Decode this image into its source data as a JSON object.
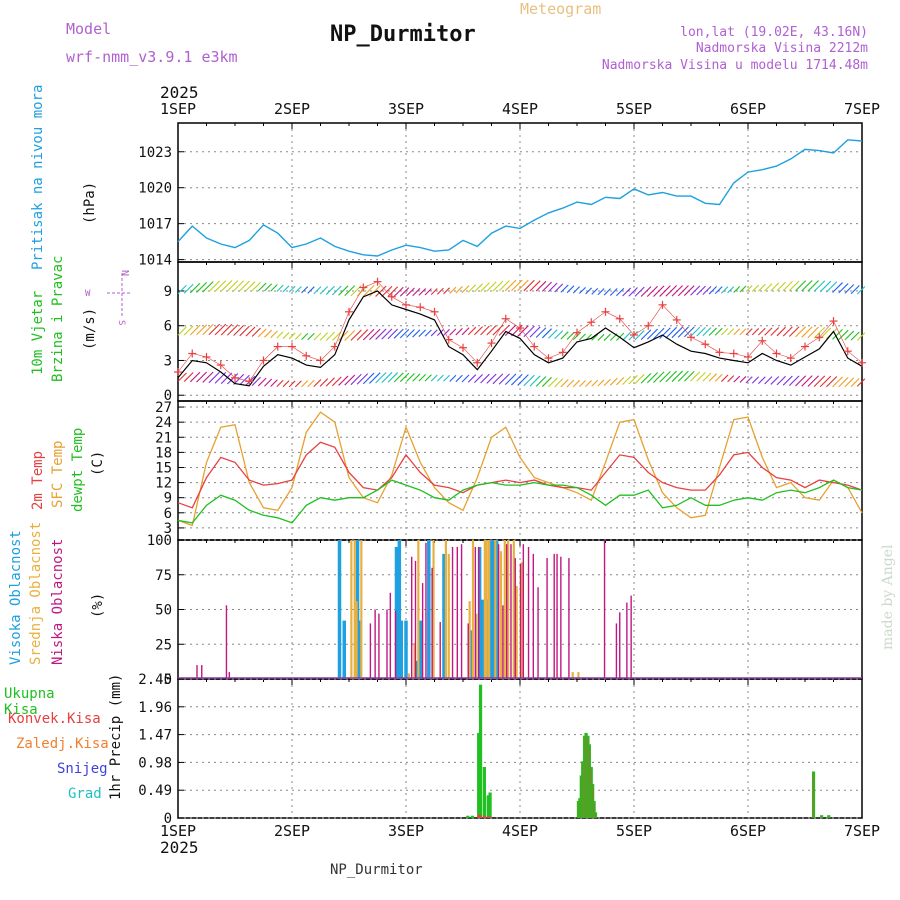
{
  "header": {
    "model_label": "Model",
    "model_value": "wrf-nmm_v3.9.1  e3km",
    "station": "NP_Durmitor",
    "product": "Meteogram",
    "lonlat": "lon,lat (19.02E, 43.16N)",
    "altitude": "Nadmorska Visina 2212m",
    "model_altitude": "Nadmorska Visina u modelu 1714.48m",
    "year": "2025",
    "footer_station": "NP_Durmitor",
    "watermark": "made by Angel"
  },
  "colors": {
    "pressure": "#1fa0e0",
    "temp2m": "#e84040",
    "sfc": "#e8a030",
    "dewpt": "#20c020",
    "high": "#1fa0e0",
    "mid": "#e8b040",
    "low": "#c01880",
    "total": "#20c020",
    "conv": "#e84040",
    "frozen": "#f08030",
    "snow": "#4040e0",
    "hail": "#20c0c0"
  },
  "chart_data": [
    {
      "id": "pressure",
      "type": "line",
      "ylabel": [
        "Pritisak na nivou mora",
        "(hPa)"
      ],
      "yticks": [
        1014,
        1017,
        1020,
        1023
      ],
      "ylim": [
        1013.8,
        1025.4
      ],
      "x_unit": "hours from 1SEP 00UTC",
      "x_ticks": [
        "1SEP",
        "2SEP",
        "3SEP",
        "4SEP",
        "5SEP",
        "6SEP",
        "7SEP"
      ],
      "x_range": [
        0,
        144
      ],
      "series": [
        {
          "name": "MSLP",
          "x": [
            0,
            3,
            6,
            9,
            12,
            15,
            18,
            21,
            24,
            27,
            30,
            33,
            36,
            39,
            42,
            45,
            48,
            51,
            54,
            57,
            60,
            63,
            66,
            69,
            72,
            75,
            78,
            81,
            84,
            87,
            90,
            93,
            96,
            99,
            102,
            105,
            108,
            111,
            114,
            117,
            120,
            123,
            126,
            129,
            132,
            135,
            138,
            141,
            144
          ],
          "y": [
            1015.5,
            1016.8,
            1015.8,
            1015.3,
            1015.0,
            1015.6,
            1016.9,
            1016.2,
            1015.0,
            1015.3,
            1015.8,
            1015.1,
            1014.7,
            1014.4,
            1014.3,
            1014.8,
            1015.2,
            1015.0,
            1014.7,
            1014.8,
            1015.6,
            1015.1,
            1016.2,
            1016.8,
            1016.6,
            1017.3,
            1017.9,
            1018.3,
            1018.8,
            1018.6,
            1019.2,
            1019.1,
            1019.9,
            1019.4,
            1019.6,
            1019.3,
            1019.3,
            1018.7,
            1018.6,
            1020.4,
            1021.3,
            1021.5,
            1021.8,
            1022.4,
            1023.2,
            1023.1,
            1022.9,
            1024.0,
            1023.9
          ]
        }
      ]
    },
    {
      "id": "wind",
      "type": "line",
      "ylabel": [
        "10m Vjetar",
        "Brzina i Pravac",
        "(m/s)"
      ],
      "compass": [
        "N",
        "E",
        "S",
        "W"
      ],
      "yticks": [
        0,
        3,
        6,
        9
      ],
      "ylim": [
        -0.5,
        11.5
      ],
      "x_range": [
        0,
        144
      ],
      "series": [
        {
          "name": "Speed",
          "x": [
            0,
            3,
            6,
            9,
            12,
            15,
            18,
            21,
            24,
            27,
            30,
            33,
            36,
            39,
            42,
            45,
            48,
            51,
            54,
            57,
            60,
            63,
            66,
            69,
            72,
            75,
            78,
            81,
            84,
            87,
            90,
            93,
            96,
            99,
            102,
            105,
            108,
            111,
            114,
            117,
            120,
            123,
            126,
            129,
            132,
            135,
            138,
            141,
            144
          ],
          "y": [
            1.5,
            3.0,
            2.8,
            2.0,
            1.0,
            0.8,
            2.5,
            3.5,
            3.2,
            2.6,
            2.4,
            3.5,
            6.5,
            8.5,
            9.0,
            7.8,
            7.4,
            7.0,
            6.5,
            4.2,
            3.5,
            2.2,
            3.8,
            5.5,
            4.9,
            3.5,
            2.8,
            3.2,
            4.6,
            4.9,
            5.8,
            5.0,
            4.1,
            4.6,
            5.2,
            4.4,
            3.8,
            3.6,
            3.2,
            3.0,
            2.8,
            3.6,
            3.0,
            2.6,
            3.3,
            4.0,
            5.5,
            3.2,
            2.5
          ]
        },
        {
          "name": "Gust",
          "x": [
            0,
            3,
            6,
            9,
            12,
            15,
            18,
            21,
            24,
            27,
            30,
            33,
            36,
            39,
            42,
            45,
            48,
            51,
            54,
            57,
            60,
            63,
            66,
            69,
            72,
            75,
            78,
            81,
            84,
            87,
            90,
            93,
            96,
            99,
            102,
            105,
            108,
            111,
            114,
            117,
            120,
            123,
            126,
            129,
            132,
            135,
            138,
            141,
            144
          ],
          "y": [
            2.0,
            3.6,
            3.3,
            2.6,
            1.5,
            1.2,
            3.0,
            4.2,
            4.2,
            3.4,
            3.0,
            4.2,
            7.2,
            9.3,
            9.8,
            8.5,
            7.8,
            7.6,
            7.2,
            4.8,
            4.1,
            2.8,
            4.5,
            6.6,
            5.8,
            4.2,
            3.2,
            3.7,
            5.4,
            6.3,
            7.2,
            6.6,
            5.2,
            6.0,
            7.8,
            6.5,
            5.0,
            4.4,
            3.7,
            3.6,
            3.3,
            4.7,
            3.6,
            3.2,
            4.2,
            5.0,
            6.4,
            3.8,
            2.8
          ]
        }
      ]
    },
    {
      "id": "temperature",
      "type": "line",
      "ylabel": [
        "2m Temp",
        "SFC Temp",
        "dewpt Temp",
        "(C)"
      ],
      "yticks": [
        3,
        6,
        9,
        12,
        15,
        18,
        21,
        24,
        27
      ],
      "ylim": [
        0.6,
        28.2
      ],
      "x_range": [
        0,
        144
      ],
      "series": [
        {
          "name": "2m Temp",
          "x": [
            0,
            3,
            6,
            9,
            12,
            15,
            18,
            21,
            24,
            27,
            30,
            33,
            36,
            39,
            42,
            45,
            48,
            51,
            54,
            57,
            60,
            63,
            66,
            69,
            72,
            75,
            78,
            81,
            84,
            87,
            90,
            93,
            96,
            99,
            102,
            105,
            108,
            111,
            114,
            117,
            120,
            123,
            126,
            129,
            132,
            135,
            138,
            141,
            144
          ],
          "y": [
            8.0,
            7.0,
            13.0,
            17.0,
            16.0,
            12.5,
            11.5,
            11.8,
            12.5,
            17.5,
            20.0,
            19.0,
            14.0,
            11.0,
            10.5,
            13.0,
            17.5,
            14.0,
            11.5,
            11.0,
            10.0,
            11.5,
            12.0,
            12.5,
            12.0,
            12.5,
            11.5,
            11.0,
            11.0,
            10.5,
            14.0,
            17.5,
            17.0,
            14.0,
            12.0,
            11.0,
            10.5,
            10.5,
            13.5,
            17.5,
            18.0,
            15.0,
            13.0,
            12.5,
            11.0,
            12.5,
            12.0,
            11.5,
            10.5
          ]
        },
        {
          "name": "SFC Temp",
          "x": [
            0,
            3,
            6,
            9,
            12,
            15,
            18,
            21,
            24,
            27,
            30,
            33,
            36,
            39,
            42,
            45,
            48,
            51,
            54,
            57,
            60,
            63,
            66,
            69,
            72,
            75,
            78,
            81,
            84,
            87,
            90,
            93,
            96,
            99,
            102,
            105,
            108,
            111,
            114,
            117,
            120,
            123,
            126,
            129,
            132,
            135,
            138,
            141,
            144
          ],
          "y": [
            4.5,
            3.5,
            16.0,
            23.0,
            23.5,
            12.0,
            7.0,
            6.5,
            11.0,
            22.0,
            26.0,
            24.0,
            13.0,
            9.0,
            8.0,
            13.5,
            23.0,
            16.0,
            11.0,
            8.0,
            6.5,
            13.0,
            21.0,
            23.0,
            17.0,
            13.0,
            12.0,
            11.0,
            10.0,
            8.5,
            16.0,
            24.0,
            24.5,
            16.5,
            10.0,
            7.0,
            5.0,
            5.5,
            15.0,
            24.5,
            25.0,
            17.0,
            11.0,
            12.0,
            9.0,
            8.5,
            12.5,
            11.0,
            6.0
          ]
        },
        {
          "name": "dewpt Temp",
          "x": [
            0,
            3,
            6,
            9,
            12,
            15,
            18,
            21,
            24,
            27,
            30,
            33,
            36,
            39,
            42,
            45,
            48,
            51,
            54,
            57,
            60,
            63,
            66,
            69,
            72,
            75,
            78,
            81,
            84,
            87,
            90,
            93,
            96,
            99,
            102,
            105,
            108,
            111,
            114,
            117,
            120,
            123,
            126,
            129,
            132,
            135,
            138,
            141,
            144
          ],
          "y": [
            4.5,
            4.0,
            7.5,
            9.5,
            8.5,
            6.5,
            5.5,
            5.0,
            4.0,
            7.5,
            9.0,
            8.5,
            9.0,
            9.0,
            10.5,
            12.5,
            11.5,
            10.5,
            9.0,
            8.5,
            10.5,
            11.5,
            12.0,
            11.5,
            11.5,
            12.0,
            11.5,
            11.5,
            11.0,
            9.5,
            7.5,
            9.5,
            9.5,
            10.5,
            7.0,
            7.5,
            9.0,
            7.5,
            7.5,
            8.5,
            9.0,
            8.5,
            10.0,
            10.5,
            10.0,
            11.0,
            12.5,
            11.0,
            10.5
          ]
        }
      ]
    },
    {
      "id": "clouds",
      "type": "bar",
      "ylabel": [
        "Visoka Oblacnost",
        "Srednja Oblacnost",
        "Niska Oblacnost",
        "(%)"
      ],
      "yticks": [
        0,
        25,
        50,
        75,
        100
      ],
      "ylim": [
        0,
        100
      ],
      "x_range": [
        0,
        144
      ],
      "series": [
        {
          "name": "High",
          "x": [
            34.0,
            35.0,
            37.8,
            38.2,
            46.0,
            46.6,
            47.0,
            48.0,
            50.2,
            51.0,
            52.8,
            56.0,
            61.8,
            63.5,
            64.0,
            64.3,
            65.3,
            65.7,
            66.0,
            66.5,
            67.1
          ],
          "y": [
            100,
            42,
            100,
            42,
            95,
            100,
            42,
            42,
            13,
            42,
            100,
            90,
            35,
            95,
            57,
            57,
            57,
            100,
            100,
            100,
            100
          ]
        },
        {
          "name": "Mid",
          "x": [
            36.5,
            37.2,
            37.6,
            38.6,
            48.6,
            49.8,
            50.6,
            53.8,
            56.4,
            57.0,
            61.4,
            62.1,
            62.8,
            64.6,
            65.0,
            65.5,
            66.8,
            68.0,
            68.8,
            69.5,
            70.7,
            71.3,
            72.4,
            83.1,
            84.3
          ],
          "y": [
            100,
            100,
            56,
            100,
            4,
            26,
            100,
            100,
            100,
            90,
            56,
            100,
            47,
            100,
            100,
            100,
            100,
            92,
            100,
            100,
            100,
            67,
            84,
            5,
            5
          ]
        },
        {
          "name": "Low",
          "x": [
            4.0,
            5.0,
            10.2,
            10.8,
            40.5,
            41.5,
            42.3,
            44.0,
            44.7,
            45.8,
            49.2,
            50.0,
            51.5,
            52.2,
            53.5,
            55.2,
            57.8,
            58.8,
            59.7,
            61.1,
            62.6,
            63.3,
            67.5,
            68.4,
            69.2,
            70.1,
            71.0,
            72.1,
            72.7,
            73.8,
            74.8,
            75.8,
            77.7,
            79.2,
            79.8,
            80.6,
            82.3,
            89.8,
            92.3,
            93.0,
            94.5,
            95.4
          ],
          "y": [
            10,
            10,
            53,
            5,
            40,
            50,
            47,
            50,
            62,
            49,
            88,
            85,
            69,
            98,
            80,
            41,
            95,
            95,
            97,
            40,
            95,
            95,
            97,
            53,
            97,
            97,
            87,
            83,
            97,
            95,
            90,
            66,
            87,
            90,
            90,
            88,
            87,
            100,
            40,
            48,
            55,
            60
          ]
        }
      ]
    },
    {
      "id": "precip",
      "type": "bar",
      "ylabel": [
        "1hr Precip (mm)"
      ],
      "legend": [
        "Ukupna Kisa",
        "Konvek.Kisa",
        "Zaledj.Kisa",
        "Snijeg",
        "Grad"
      ],
      "yticks": [
        0,
        0.49,
        0.98,
        1.47,
        1.96,
        2.45
      ],
      "ytick_labels": [
        "0",
        "0.49",
        "0.98",
        "1.47",
        "1.96",
        "2.45"
      ],
      "ylim": [
        0,
        2.45
      ],
      "x_range": [
        0,
        144
      ],
      "series": [
        {
          "name": "Ukupna Kisa",
          "x": [
            63.3,
            63.7,
            64.1,
            64.5,
            64.9,
            65.3,
            65.7,
            66.1,
            66.5,
            66.9,
            67.3,
            67.7,
            68.1,
            68.5,
            68.9,
            69.3,
            69.7,
            70.1,
            70.5,
            70.9,
            71.3,
            71.7,
            72.1,
            72.5,
            72.9,
            73.3,
            73.7,
            74.1,
            74.5,
            74.9,
            75.3,
            75.7,
            76.1,
            76.5,
            76.9,
            77.3,
            77.7,
            78.1,
            78.5,
            78.9,
            79.3,
            79.7,
            80.1,
            80.5,
            80.9,
            81.3,
            81.7,
            82.1,
            82.5,
            82.9,
            83.3,
            83.7
          ],
          "y": [
            1.5,
            2.35,
            0.0,
            0.9,
            0.0,
            0.4,
            0.45,
            0.0,
            0.0,
            0.0,
            0.0,
            0.0,
            0.0,
            0.0,
            0.0,
            0.0,
            0.0,
            0.0,
            0.0,
            0.0,
            0.0,
            0.0,
            0.0,
            0.0,
            0.0,
            0.0,
            0.0,
            0.0,
            0.0,
            0.0,
            0.0,
            0.0,
            0.0,
            0.0,
            0.0,
            0.0,
            0.0,
            0.0,
            0.0,
            0.0,
            0.0,
            0.0,
            0.0,
            0.0,
            0.0,
            0.0,
            0.0,
            0.0,
            0.0,
            0.0,
            0.0,
            0.0
          ]
        },
        {
          "name": "Konvek.Kisa",
          "x": [
            63.3,
            63.7,
            64.5,
            65.3,
            65.7
          ],
          "y": [
            0.06,
            0.05,
            0.04,
            0.03,
            0.03
          ]
        }
      ]
    }
  ]
}
